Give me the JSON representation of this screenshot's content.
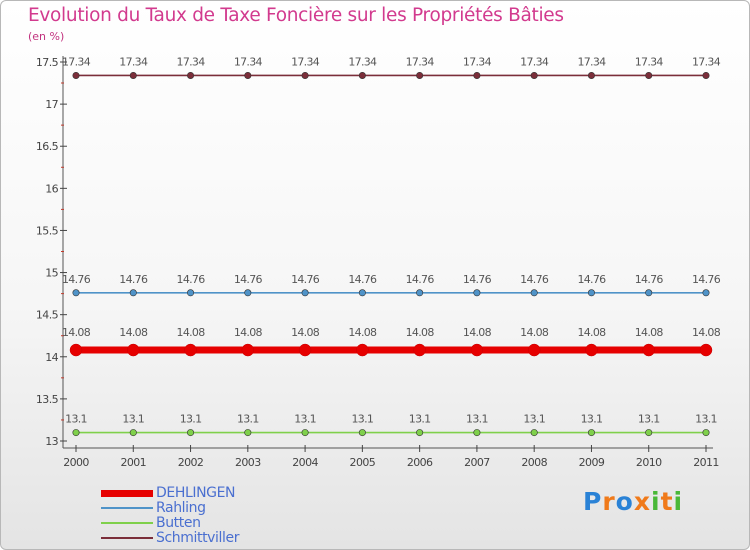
{
  "title": "Evolution du Taux de Taxe Foncière sur les Propriétés Bâties",
  "unit_label": "(en %)",
  "logo": {
    "letters": [
      {
        "ch": "P",
        "color": "#2a82d6"
      },
      {
        "ch": "r",
        "color": "#f07a1a"
      },
      {
        "ch": "o",
        "color": "#2a82d6"
      },
      {
        "ch": "x",
        "color": "#f07a1a"
      },
      {
        "ch": "i",
        "color": "#49b838"
      },
      {
        "ch": "t",
        "color": "#f07a1a"
      },
      {
        "ch": "i",
        "color": "#49b838"
      }
    ]
  },
  "chart_data": {
    "type": "line",
    "title": "Evolution du Taux de Taxe Foncière sur les Propriétés Bâties",
    "ylabel": "(en %)",
    "xlabel": "",
    "ylim": [
      13,
      17.5
    ],
    "yticks": [
      "13",
      "13.5",
      "14",
      "14.5",
      "15",
      "15.5",
      "16",
      "16.5",
      "17",
      "17.5"
    ],
    "ytick_values": [
      13,
      13.5,
      14,
      14.5,
      15,
      15.5,
      16,
      16.5,
      17,
      17.5
    ],
    "categories": [
      "2000",
      "2001",
      "2002",
      "2003",
      "2004",
      "2005",
      "2006",
      "2007",
      "2008",
      "2009",
      "2010",
      "2011"
    ],
    "legend_position": "bottom-left",
    "series": [
      {
        "name": "DEHLINGEN",
        "color": "#e60000",
        "highlight": true,
        "values": [
          14.08,
          14.08,
          14.08,
          14.08,
          14.08,
          14.08,
          14.08,
          14.08,
          14.08,
          14.08,
          14.08,
          14.08
        ],
        "labels": [
          "14.08",
          "14.08",
          "14.08",
          "14.08",
          "14.08",
          "14.08",
          "14.08",
          "14.08",
          "14.08",
          "14.08",
          "14.08",
          "14.08"
        ]
      },
      {
        "name": "Rahling",
        "color": "#4f93c8",
        "highlight": false,
        "values": [
          14.76,
          14.76,
          14.76,
          14.76,
          14.76,
          14.76,
          14.76,
          14.76,
          14.76,
          14.76,
          14.76,
          14.76
        ],
        "labels": [
          "14.76",
          "14.76",
          "14.76",
          "14.76",
          "14.76",
          "14.76",
          "14.76",
          "14.76",
          "14.76",
          "14.76",
          "14.76",
          "14.76"
        ]
      },
      {
        "name": "Butten",
        "color": "#7fd04b",
        "highlight": false,
        "values": [
          13.1,
          13.1,
          13.1,
          13.1,
          13.1,
          13.1,
          13.1,
          13.1,
          13.1,
          13.1,
          13.1,
          13.1
        ],
        "labels": [
          "13.1",
          "13.1",
          "13.1",
          "13.1",
          "13.1",
          "13.1",
          "13.1",
          "13.1",
          "13.1",
          "13.1",
          "13.1",
          "13.1"
        ]
      },
      {
        "name": "Schmittviller",
        "color": "#7b2e3a",
        "highlight": false,
        "values": [
          17.34,
          17.34,
          17.34,
          17.34,
          17.34,
          17.34,
          17.34,
          17.34,
          17.34,
          17.34,
          17.34,
          17.34
        ],
        "labels": [
          "17.34",
          "17.34",
          "17.34",
          "17.34",
          "17.34",
          "17.34",
          "17.34",
          "17.34",
          "17.34",
          "17.34",
          "17.34",
          "17.34"
        ]
      }
    ]
  }
}
